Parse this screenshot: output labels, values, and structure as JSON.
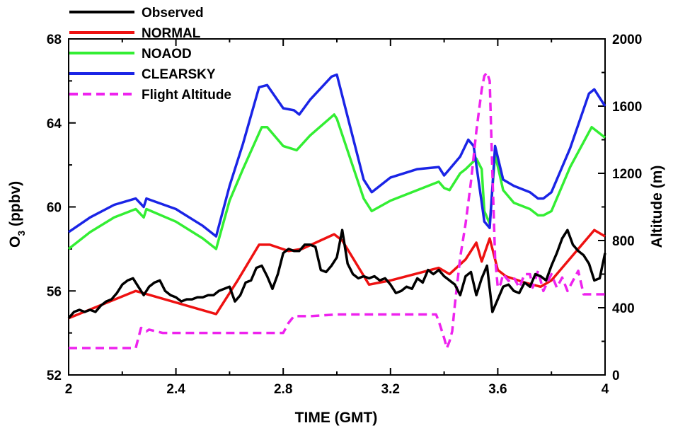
{
  "chart_data": {
    "type": "line",
    "xlabel": "TIME (GMT)",
    "ylabel": "O3 (ppbv)",
    "ylabel_main": "O",
    "ylabel_sub": "3",
    "ylabel_rest": " (ppbv)",
    "y2label": "Altitude (m)",
    "xlim": [
      2,
      4
    ],
    "ylim": [
      52,
      68
    ],
    "y2lim": [
      0,
      2000
    ],
    "xticks": [
      "2",
      "2.4",
      "2.8",
      "3.2",
      "3.6",
      "4"
    ],
    "yticks": [
      "52",
      "56",
      "60",
      "64",
      "68"
    ],
    "y2ticks": [
      "0",
      "400",
      "800",
      "1200",
      "1600",
      "2000"
    ],
    "legend_position": "top-left",
    "series": [
      {
        "name": "Observed",
        "color": "#000000",
        "style": "solid",
        "axis": "left",
        "x": [
          2.0,
          2.02,
          2.04,
          2.06,
          2.08,
          2.1,
          2.12,
          2.14,
          2.16,
          2.18,
          2.2,
          2.22,
          2.24,
          2.26,
          2.28,
          2.3,
          2.32,
          2.34,
          2.36,
          2.38,
          2.4,
          2.42,
          2.44,
          2.46,
          2.48,
          2.5,
          2.52,
          2.54,
          2.56,
          2.58,
          2.6,
          2.62,
          2.64,
          2.66,
          2.68,
          2.7,
          2.72,
          2.74,
          2.76,
          2.78,
          2.8,
          2.82,
          2.84,
          2.86,
          2.88,
          2.9,
          2.92,
          2.94,
          2.96,
          2.98,
          3.0,
          3.02,
          3.04,
          3.06,
          3.08,
          3.1,
          3.12,
          3.14,
          3.16,
          3.18,
          3.2,
          3.22,
          3.24,
          3.26,
          3.28,
          3.3,
          3.32,
          3.34,
          3.36,
          3.38,
          3.4,
          3.42,
          3.44,
          3.46,
          3.48,
          3.5,
          3.52,
          3.54,
          3.56,
          3.58,
          3.6,
          3.62,
          3.64,
          3.66,
          3.68,
          3.7,
          3.72,
          3.74,
          3.76,
          3.78,
          3.8,
          3.82,
          3.84,
          3.86,
          3.88,
          3.9,
          3.92,
          3.94,
          3.96,
          3.98,
          4.0
        ],
        "values": [
          54.7,
          55.0,
          55.1,
          55.0,
          55.1,
          55.0,
          55.3,
          55.5,
          55.6,
          55.9,
          56.3,
          56.5,
          56.6,
          56.2,
          55.8,
          56.2,
          56.4,
          56.5,
          56.0,
          55.8,
          55.7,
          55.5,
          55.6,
          55.6,
          55.7,
          55.7,
          55.8,
          55.8,
          56.0,
          56.1,
          56.2,
          55.5,
          55.8,
          56.4,
          56.5,
          57.1,
          57.2,
          56.7,
          56.1,
          56.8,
          57.8,
          58.0,
          57.9,
          57.9,
          58.2,
          58.2,
          58.1,
          57.0,
          56.9,
          57.2,
          57.6,
          58.9,
          57.3,
          56.8,
          56.6,
          56.7,
          56.6,
          56.7,
          56.5,
          56.6,
          56.3,
          55.9,
          56.0,
          56.2,
          56.1,
          56.6,
          56.4,
          57.0,
          56.8,
          57.0,
          56.7,
          56.5,
          56.3,
          55.8,
          56.7,
          56.9,
          55.8,
          56.6,
          57.2,
          55.0,
          55.6,
          56.2,
          56.3,
          56.0,
          55.9,
          56.4,
          56.2,
          56.8,
          56.7,
          56.5,
          57.2,
          57.8,
          58.5,
          58.9,
          58.2,
          57.9,
          57.7,
          57.3,
          56.5,
          56.6,
          57.8
        ]
      },
      {
        "name": "NORMAL",
        "color": "#ee1111",
        "style": "solid",
        "axis": "left",
        "x": [
          2.0,
          2.25,
          2.55,
          2.63,
          2.71,
          2.75,
          2.82,
          2.87,
          2.99,
          3.02,
          3.12,
          3.2,
          3.38,
          3.42,
          3.48,
          3.52,
          3.54,
          3.57,
          3.6,
          3.63,
          3.7,
          3.76,
          3.8,
          3.96,
          4.0
        ],
        "values": [
          54.7,
          56.0,
          54.9,
          56.5,
          58.2,
          58.2,
          57.9,
          58.0,
          58.7,
          58.4,
          56.3,
          56.5,
          57.1,
          56.8,
          57.5,
          58.3,
          57.4,
          58.5,
          57.0,
          56.7,
          56.4,
          56.2,
          56.5,
          58.9,
          58.6
        ]
      },
      {
        "name": "NOAOD",
        "color": "#33ee33",
        "style": "solid",
        "axis": "left",
        "x": [
          2.0,
          2.08,
          2.17,
          2.25,
          2.28,
          2.29,
          2.4,
          2.5,
          2.55,
          2.6,
          2.65,
          2.72,
          2.74,
          2.8,
          2.85,
          2.9,
          2.99,
          3.0,
          3.1,
          3.13,
          3.2,
          3.3,
          3.38,
          3.4,
          3.42,
          3.46,
          3.48,
          3.52,
          3.54,
          3.55,
          3.57,
          3.59,
          3.62,
          3.66,
          3.72,
          3.75,
          3.77,
          3.8,
          3.87,
          3.95,
          4.0
        ],
        "values": [
          58.0,
          58.8,
          59.5,
          59.9,
          59.5,
          59.9,
          59.3,
          58.5,
          58.0,
          60.3,
          61.8,
          63.8,
          63.8,
          62.9,
          62.7,
          63.4,
          64.4,
          64.2,
          60.4,
          59.8,
          60.3,
          60.8,
          61.2,
          60.9,
          60.8,
          61.6,
          61.8,
          62.3,
          61.8,
          59.8,
          59.2,
          62.5,
          60.8,
          60.2,
          59.9,
          59.6,
          59.6,
          59.8,
          61.9,
          63.8,
          63.3
        ]
      },
      {
        "name": "CLEARSKY",
        "color": "#1a24e6",
        "style": "solid",
        "axis": "left",
        "x": [
          2.0,
          2.08,
          2.17,
          2.25,
          2.28,
          2.29,
          2.4,
          2.5,
          2.55,
          2.6,
          2.65,
          2.71,
          2.74,
          2.8,
          2.84,
          2.86,
          2.9,
          2.98,
          3.0,
          3.1,
          3.13,
          3.2,
          3.3,
          3.38,
          3.4,
          3.42,
          3.46,
          3.49,
          3.51,
          3.54,
          3.55,
          3.57,
          3.59,
          3.62,
          3.66,
          3.72,
          3.75,
          3.77,
          3.8,
          3.87,
          3.94,
          3.96,
          4.0
        ],
        "values": [
          58.8,
          59.5,
          60.1,
          60.4,
          60.0,
          60.4,
          59.9,
          59.1,
          58.6,
          61.0,
          63.0,
          65.7,
          65.8,
          64.7,
          64.6,
          64.4,
          65.1,
          66.2,
          66.3,
          61.3,
          60.7,
          61.4,
          61.8,
          61.9,
          61.5,
          61.8,
          62.4,
          63.2,
          62.9,
          60.2,
          59.3,
          59.0,
          62.9,
          61.3,
          61.0,
          60.7,
          60.4,
          60.4,
          60.7,
          62.8,
          65.4,
          65.6,
          64.8
        ]
      },
      {
        "name": "Flight Altitude",
        "color": "#ee22ee",
        "style": "dashed",
        "axis": "right",
        "x": [
          2.0,
          2.25,
          2.26,
          2.27,
          2.29,
          2.3,
          2.35,
          2.55,
          2.8,
          2.82,
          2.84,
          2.9,
          3.0,
          3.1,
          3.37,
          3.38,
          3.4,
          3.41,
          3.42,
          3.43,
          3.44,
          3.46,
          3.48,
          3.5,
          3.51,
          3.52,
          3.54,
          3.55,
          3.56,
          3.57,
          3.58,
          3.59,
          3.6,
          3.61,
          3.62,
          3.64,
          3.66,
          3.68,
          3.7,
          3.72,
          3.73,
          3.75,
          3.77,
          3.8,
          3.82,
          3.84,
          3.86,
          3.88,
          3.9,
          3.92,
          4.0
        ],
        "values": [
          160,
          160,
          220,
          280,
          260,
          270,
          250,
          250,
          250,
          310,
          350,
          350,
          360,
          360,
          360,
          320,
          220,
          160,
          200,
          260,
          420,
          700,
          900,
          1150,
          1300,
          1450,
          1700,
          1780,
          1800,
          1750,
          1200,
          700,
          520,
          540,
          600,
          560,
          580,
          520,
          600,
          600,
          520,
          620,
          500,
          600,
          520,
          580,
          500,
          560,
          620,
          480,
          480
        ]
      }
    ]
  }
}
